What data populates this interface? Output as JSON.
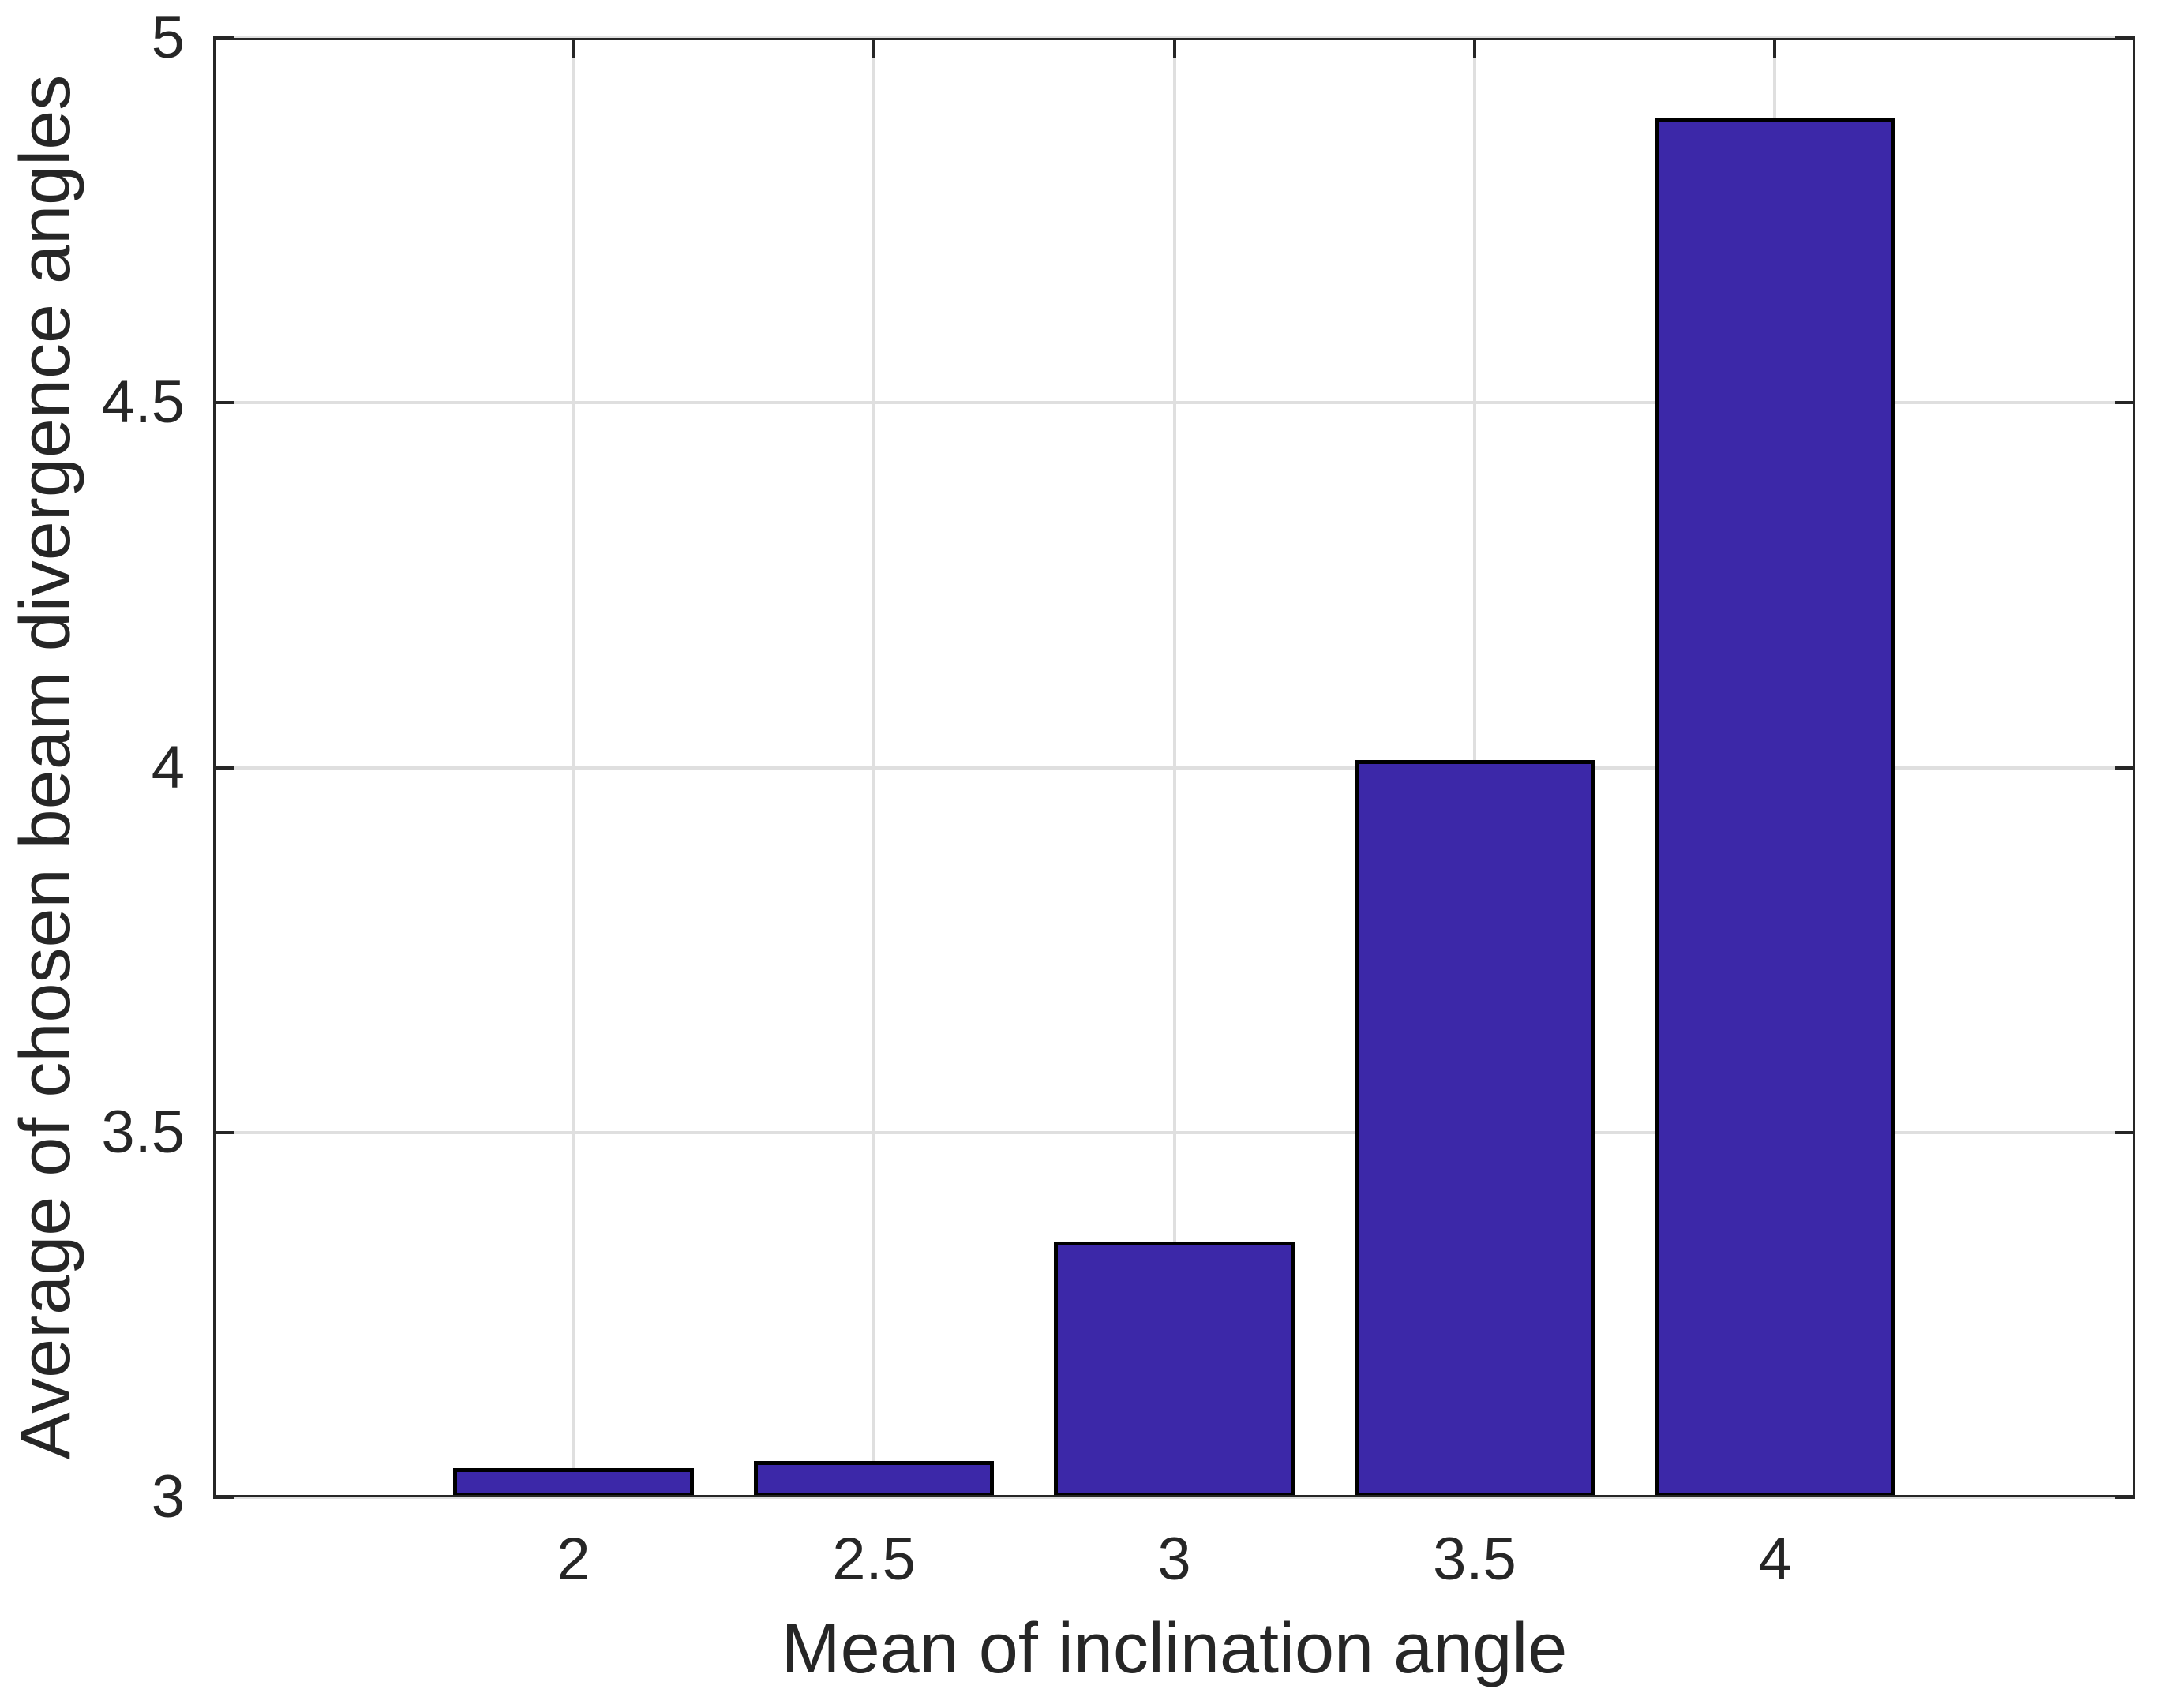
{
  "chart_data": {
    "type": "bar",
    "title": "",
    "xlabel": "Mean of inclination angle",
    "ylabel": "Average of chosen beam divergence angles",
    "categories": [
      2,
      2.5,
      3,
      3.5,
      4
    ],
    "values": [
      3.04,
      3.05,
      3.35,
      4.01,
      4.89
    ],
    "xtick_labels": [
      "2",
      "2.5",
      "3",
      "3.5",
      "4"
    ],
    "ytick_labels": [
      "3",
      "3.5",
      "4",
      "4.5",
      "5"
    ],
    "yticks": [
      3,
      3.5,
      4,
      4.5,
      5
    ],
    "xlim": [
      1.4,
      4.6
    ],
    "ylim": [
      3,
      5
    ],
    "bar_width_units": 0.4,
    "grid": true,
    "legend_position": "none",
    "colors": {
      "bar_fill": "#3c28a8",
      "bar_edge": "#000000",
      "axis": "#262626",
      "grid": "#dfdfdf",
      "text": "#262626",
      "background": "#ffffff"
    }
  }
}
